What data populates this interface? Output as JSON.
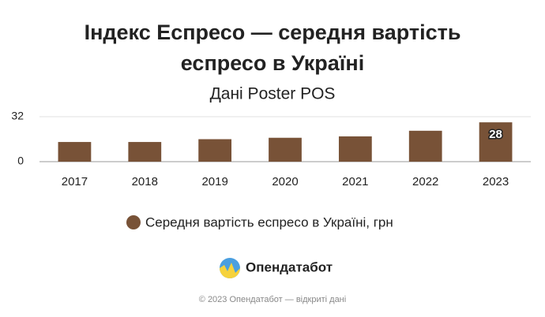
{
  "chart_data": {
    "type": "bar",
    "title": [
      "Індекс Еспресо — середня вартість",
      "еспресо в Україні"
    ],
    "subtitle": "Дані Poster POS",
    "categories": [
      "2017",
      "2018",
      "2019",
      "2020",
      "2021",
      "2022",
      "2023"
    ],
    "series": [
      {
        "name": "Середня вартість еспресо в Україні, грн",
        "color": "#785237",
        "values": [
          14,
          14,
          16,
          17,
          18,
          22,
          28
        ],
        "value_labels": [
          null,
          null,
          null,
          null,
          null,
          null,
          "28"
        ]
      }
    ],
    "ylim": [
      0,
      32
    ],
    "yticks": [
      0,
      32
    ],
    "grid": true
  },
  "logo_text": "Опендатабот",
  "footer": "© 2023 Опендатабот — відкриті дані"
}
